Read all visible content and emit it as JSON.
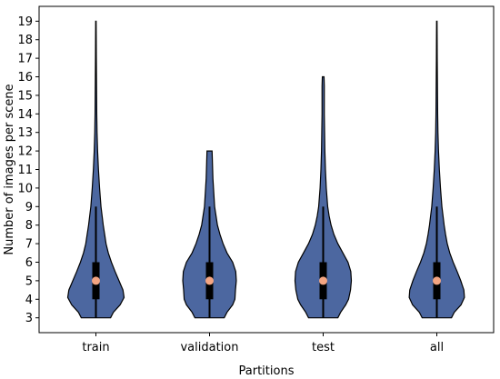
{
  "chart_data": {
    "type": "violin",
    "title": "",
    "xlabel": "Partitions",
    "ylabel": "Number of images per scene",
    "categories": [
      "train",
      "validation",
      "test",
      "all"
    ],
    "ylim": [
      2.2,
      19.8
    ],
    "yticks": [
      3,
      4,
      5,
      6,
      7,
      8,
      9,
      10,
      11,
      12,
      13,
      14,
      15,
      16,
      17,
      18,
      19
    ],
    "grid": false,
    "colors": {
      "violin_fill": "#4c67a0",
      "violin_edge": "#000000",
      "box": "#000000",
      "median": "#f4a582"
    },
    "violins": [
      {
        "category": "train",
        "min": 3,
        "max": 19,
        "q1": 4,
        "median": 5,
        "q3": 6,
        "whisker_low": 3,
        "whisker_high": 9,
        "density": [
          [
            3,
            0.52
          ],
          [
            3.3,
            0.62
          ],
          [
            3.7,
            0.86
          ],
          [
            4.1,
            1.0
          ],
          [
            4.5,
            0.96
          ],
          [
            5,
            0.82
          ],
          [
            5.5,
            0.68
          ],
          [
            6,
            0.55
          ],
          [
            6.5,
            0.44
          ],
          [
            7,
            0.36
          ],
          [
            7.5,
            0.31
          ],
          [
            8,
            0.26
          ],
          [
            8.5,
            0.22
          ],
          [
            9,
            0.18
          ],
          [
            10,
            0.13
          ],
          [
            11,
            0.09
          ],
          [
            12,
            0.06
          ],
          [
            13,
            0.04
          ],
          [
            14,
            0.03
          ],
          [
            15,
            0.025
          ],
          [
            16,
            0.02
          ],
          [
            17,
            0.015
          ],
          [
            18,
            0.012
          ],
          [
            19,
            0.008
          ]
        ]
      },
      {
        "category": "validation",
        "min": 3,
        "max": 12,
        "q1": 4,
        "median": 5,
        "q3": 6,
        "whisker_low": 3,
        "whisker_high": 9,
        "density": [
          [
            3,
            0.52
          ],
          [
            3.3,
            0.62
          ],
          [
            3.7,
            0.82
          ],
          [
            4,
            0.9
          ],
          [
            4.5,
            0.92
          ],
          [
            5,
            0.95
          ],
          [
            5.5,
            0.93
          ],
          [
            6,
            0.82
          ],
          [
            6.5,
            0.62
          ],
          [
            7,
            0.48
          ],
          [
            7.5,
            0.37
          ],
          [
            8,
            0.28
          ],
          [
            8.5,
            0.23
          ],
          [
            9,
            0.18
          ],
          [
            9.5,
            0.16
          ],
          [
            10,
            0.14
          ],
          [
            10.5,
            0.12
          ],
          [
            11,
            0.11
          ],
          [
            11.5,
            0.1
          ],
          [
            12,
            0.09
          ]
        ]
      },
      {
        "category": "test",
        "min": 3,
        "max": 16,
        "q1": 4,
        "median": 5,
        "q3": 6,
        "whisker_low": 3,
        "whisker_high": 9,
        "density": [
          [
            3,
            0.52
          ],
          [
            3.3,
            0.62
          ],
          [
            3.7,
            0.8
          ],
          [
            4,
            0.9
          ],
          [
            4.5,
            0.97
          ],
          [
            5,
            1.0
          ],
          [
            5.5,
            0.98
          ],
          [
            6,
            0.88
          ],
          [
            6.5,
            0.7
          ],
          [
            7,
            0.52
          ],
          [
            7.5,
            0.38
          ],
          [
            8,
            0.28
          ],
          [
            8.5,
            0.21
          ],
          [
            9,
            0.16
          ],
          [
            10,
            0.11
          ],
          [
            11,
            0.08
          ],
          [
            12,
            0.06
          ],
          [
            13,
            0.05
          ],
          [
            14,
            0.04
          ],
          [
            15,
            0.04
          ],
          [
            15.5,
            0.04
          ],
          [
            16,
            0.03
          ]
        ]
      },
      {
        "category": "all",
        "min": 3,
        "max": 19,
        "q1": 4,
        "median": 5,
        "q3": 6,
        "whisker_low": 3,
        "whisker_high": 9,
        "density": [
          [
            3,
            0.52
          ],
          [
            3.3,
            0.62
          ],
          [
            3.7,
            0.86
          ],
          [
            4.1,
            0.98
          ],
          [
            4.5,
            0.96
          ],
          [
            5,
            0.85
          ],
          [
            5.5,
            0.72
          ],
          [
            6,
            0.58
          ],
          [
            6.5,
            0.46
          ],
          [
            7,
            0.37
          ],
          [
            7.5,
            0.31
          ],
          [
            8,
            0.26
          ],
          [
            8.5,
            0.22
          ],
          [
            9,
            0.18
          ],
          [
            10,
            0.13
          ],
          [
            11,
            0.09
          ],
          [
            12,
            0.06
          ],
          [
            13,
            0.04
          ],
          [
            14,
            0.03
          ],
          [
            15,
            0.025
          ],
          [
            16,
            0.02
          ],
          [
            17,
            0.015
          ],
          [
            18,
            0.012
          ],
          [
            19,
            0.008
          ]
        ]
      }
    ]
  }
}
